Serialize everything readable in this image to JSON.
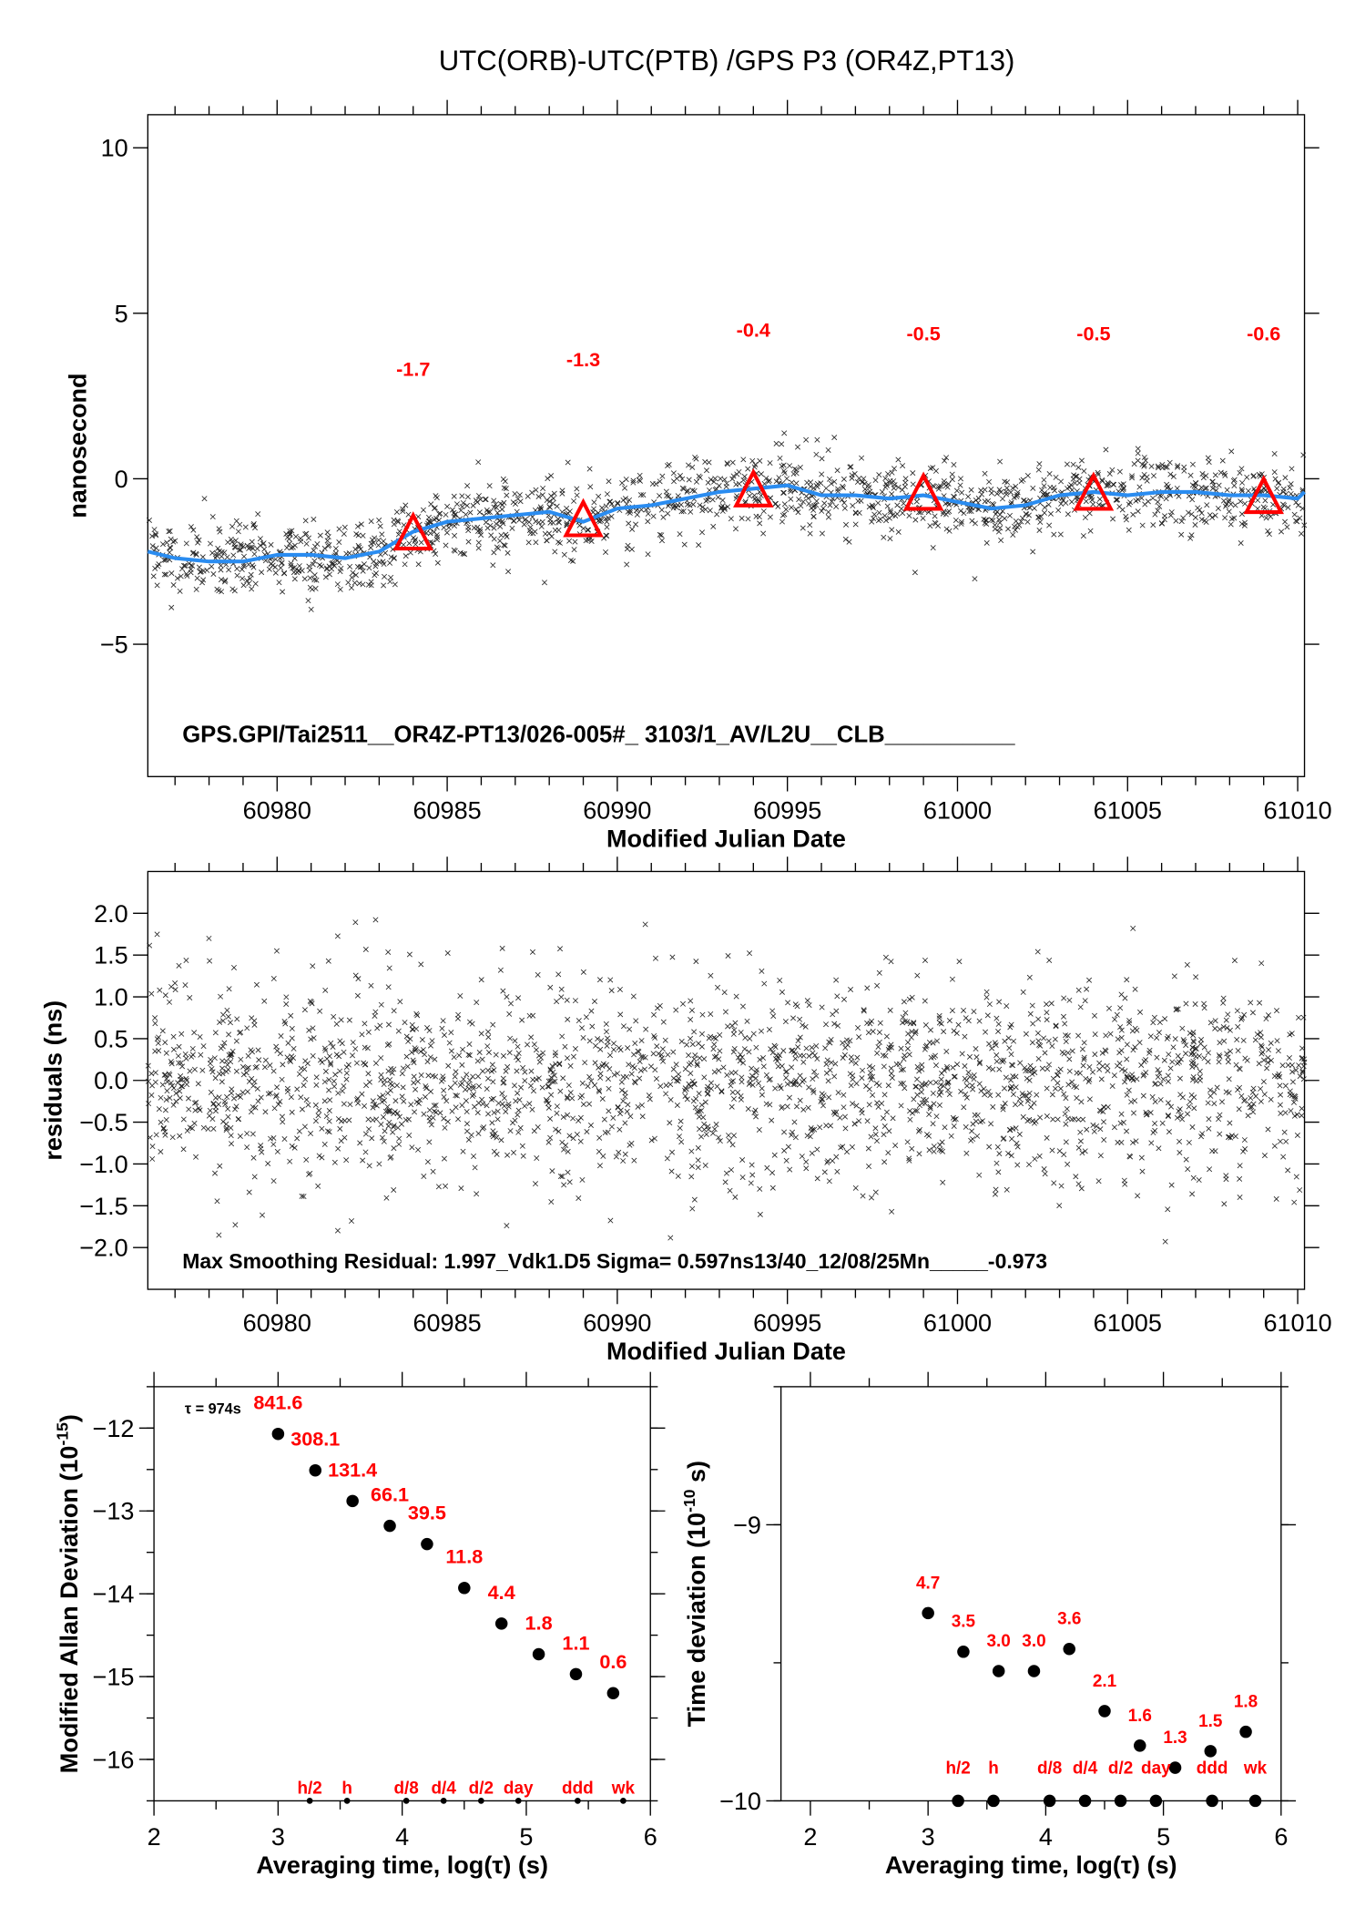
{
  "title": "UTC(ORB)-UTC(PTB)  /GPS  P3  (OR4Z,PT13)",
  "colors": {
    "smooth_line": "#2a8cf0",
    "marker": "#ff0000",
    "points": "#000000"
  },
  "chart_data": [
    {
      "type": "scatter",
      "xlabel": "Modified Julian Date",
      "ylabel": "nanosecond",
      "xlim": [
        60976.2,
        61010.2
      ],
      "ylim": [
        -9,
        11
      ],
      "xticks": [
        "60980",
        "60985",
        "60990",
        "60995",
        "61000",
        "61005",
        "61010"
      ],
      "yticks": [
        "10",
        "5",
        "0",
        "−5"
      ],
      "ytick_values": [
        10,
        5,
        0,
        -5
      ],
      "xtick_values": [
        60980,
        60985,
        60990,
        60995,
        61000,
        61005,
        61010
      ],
      "annotation": "GPS.GPI/Tai2511__OR4Z-PT13/026-005#_  3103/1_AV/L2U__CLB__________",
      "smoothed_series": {
        "x": [
          60976.2,
          60977,
          60978,
          60979,
          60980,
          60981,
          60982,
          60983,
          60984,
          60985,
          60986,
          60987,
          60988,
          60989,
          60990,
          60991,
          60992,
          60993,
          60994,
          60995,
          60996,
          60997,
          60998,
          60999,
          61000,
          61001,
          61002,
          61003,
          61004,
          61005,
          61006,
          61007,
          61008,
          61009,
          61010,
          61010.2
        ],
        "y": [
          -2.2,
          -2.4,
          -2.5,
          -2.5,
          -2.3,
          -2.3,
          -2.4,
          -2.2,
          -1.6,
          -1.3,
          -1.2,
          -1.1,
          -1.0,
          -1.3,
          -0.9,
          -0.8,
          -0.6,
          -0.4,
          -0.3,
          -0.2,
          -0.5,
          -0.5,
          -0.6,
          -0.5,
          -0.7,
          -0.9,
          -0.8,
          -0.5,
          -0.4,
          -0.5,
          -0.4,
          -0.4,
          -0.5,
          -0.5,
          -0.6,
          -0.4
        ]
      },
      "markers": {
        "x": [
          60984,
          60989,
          60994,
          60999,
          61004,
          61009
        ],
        "y": [
          -1.7,
          -1.3,
          -0.4,
          -0.5,
          -0.5,
          -0.6
        ],
        "labels": [
          "-1.7",
          "-1.3",
          "-0.4",
          "-0.5",
          "-0.5",
          "-0.6"
        ]
      },
      "grid": false
    },
    {
      "type": "scatter",
      "xlabel": "Modified Julian Date",
      "ylabel": "residuals (ns)",
      "xlim": [
        60976.2,
        61010.2
      ],
      "ylim": [
        -2.5,
        2.5
      ],
      "xticks": [
        "60980",
        "60985",
        "60990",
        "60995",
        "61000",
        "61005",
        "61010"
      ],
      "xtick_values": [
        60980,
        60985,
        60990,
        60995,
        61000,
        61005,
        61010
      ],
      "yticks": [
        "2.0",
        "1.5",
        "1.0",
        "0.5",
        "0.0",
        "−0.5",
        "−1.0",
        "−1.5",
        "−2.0"
      ],
      "ytick_values": [
        2.0,
        1.5,
        1.0,
        0.5,
        0.0,
        -0.5,
        -1.0,
        -1.5,
        -2.0
      ],
      "annotation": "Max Smoothing Residual: 1.997_Vdk1.D5  Sigma= 0.597ns13/40_12/08/25Mn_____-0.973",
      "grid": false
    },
    {
      "type": "scatter",
      "xlabel": "Averaging time, log(τ) (s)",
      "ylabel": "Modified Allan Deviation (10",
      "ylabel_exp": "-15",
      "ylabel_end": ")",
      "xlim": [
        2,
        6
      ],
      "ylim": [
        -16.5,
        -11.5
      ],
      "xticks": [
        "2",
        "3",
        "4",
        "5",
        "6"
      ],
      "xtick_values": [
        2,
        3,
        4,
        5,
        6
      ],
      "yticks": [
        "−12",
        "−13",
        "−14",
        "−15",
        "−16"
      ],
      "ytick_values": [
        -12,
        -13,
        -14,
        -15,
        -16
      ],
      "tau_note": "τ = 974s",
      "x": [
        3.0,
        3.3,
        3.6,
        3.9,
        4.2,
        4.5,
        4.8,
        5.1,
        5.4,
        5.7
      ],
      "y": [
        -12.07,
        -12.51,
        -12.88,
        -13.18,
        -13.4,
        -13.93,
        -14.36,
        -14.73,
        -14.97,
        -15.2
      ],
      "labels": [
        "841.6",
        "308.1",
        "131.4",
        "66.1",
        "39.5",
        "11.8",
        "4.4",
        "1.8",
        "1.1",
        "0.6"
      ],
      "time_marks": {
        "x": [
          3.255,
          3.556,
          4.033,
          4.334,
          4.636,
          4.936,
          5.414,
          5.781
        ],
        "labels": [
          "h/2",
          "h",
          "d/8",
          "d/4",
          "d/2",
          "day",
          "ddd",
          "wk"
        ]
      },
      "grid": false
    },
    {
      "type": "scatter",
      "xlabel": "Averaging time, log(τ) (s)",
      "ylabel": "Time deviation (10",
      "ylabel_exp": "-10",
      "ylabel_end": " s)",
      "xlim": [
        1.75,
        6
      ],
      "ylim": [
        -10,
        -8.5
      ],
      "xticks": [
        "2",
        "3",
        "4",
        "5",
        "6"
      ],
      "xtick_values": [
        2,
        3,
        4,
        5,
        6
      ],
      "yticks": [
        "−9",
        "−10"
      ],
      "ytick_values": [
        -9,
        -10
      ],
      "x": [
        3.0,
        3.3,
        3.6,
        3.9,
        4.2,
        4.5,
        4.8,
        5.1,
        5.4,
        5.7
      ],
      "y": [
        -9.32,
        -9.46,
        -9.53,
        -9.53,
        -9.45,
        -9.675,
        -9.8,
        -9.88,
        -9.82,
        -9.75
      ],
      "labels": [
        "4.7",
        "3.5",
        "3.0",
        "3.0",
        "3.6",
        "2.1",
        "1.6",
        "1.3",
        "1.5",
        "1.8"
      ],
      "time_marks": {
        "x": [
          3.255,
          3.556,
          4.033,
          4.334,
          4.636,
          4.936,
          5.414,
          5.781
        ],
        "labels": [
          "h/2",
          "h",
          "d/8",
          "d/4",
          "d/2",
          "day",
          "ddd",
          "wk"
        ]
      },
      "grid": false
    }
  ]
}
